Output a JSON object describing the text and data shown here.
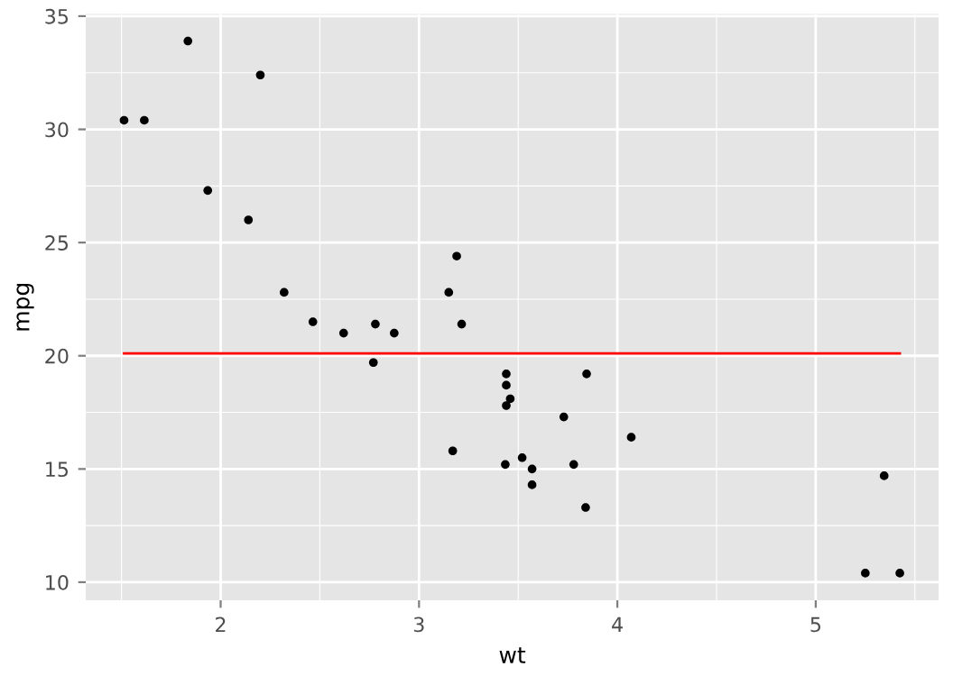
{
  "chart_data": {
    "type": "scatter",
    "xlabel": "wt",
    "ylabel": "mpg",
    "xlim": [
      1.32,
      5.62
    ],
    "ylim": [
      9.2,
      35.1
    ],
    "xticks": [
      2,
      3,
      4,
      5
    ],
    "yticks": [
      10,
      15,
      20,
      25,
      30,
      35
    ],
    "grid": true,
    "series": [
      {
        "color": "#000000",
        "marker": "circle",
        "x": [
          2.62,
          2.875,
          2.32,
          3.215,
          3.44,
          3.46,
          3.57,
          3.19,
          3.15,
          3.44,
          3.44,
          4.07,
          3.73,
          3.78,
          5.25,
          5.424,
          5.345,
          2.2,
          1.615,
          1.835,
          2.465,
          3.52,
          3.435,
          3.84,
          3.845,
          1.935,
          2.14,
          1.513,
          3.17,
          2.77,
          3.57,
          2.78
        ],
        "values": [
          21.0,
          21.0,
          22.8,
          21.4,
          18.7,
          18.1,
          14.3,
          24.4,
          22.8,
          19.2,
          17.8,
          16.4,
          17.3,
          15.2,
          10.4,
          10.4,
          14.7,
          32.4,
          30.4,
          33.9,
          21.5,
          15.5,
          15.2,
          13.3,
          19.2,
          27.3,
          26.0,
          30.4,
          15.8,
          19.7,
          15.0,
          21.4
        ]
      },
      {
        "type": "line",
        "color": "#ff0000",
        "x": [
          1.513,
          5.424
        ],
        "values": [
          20.1,
          20.1
        ]
      }
    ]
  }
}
